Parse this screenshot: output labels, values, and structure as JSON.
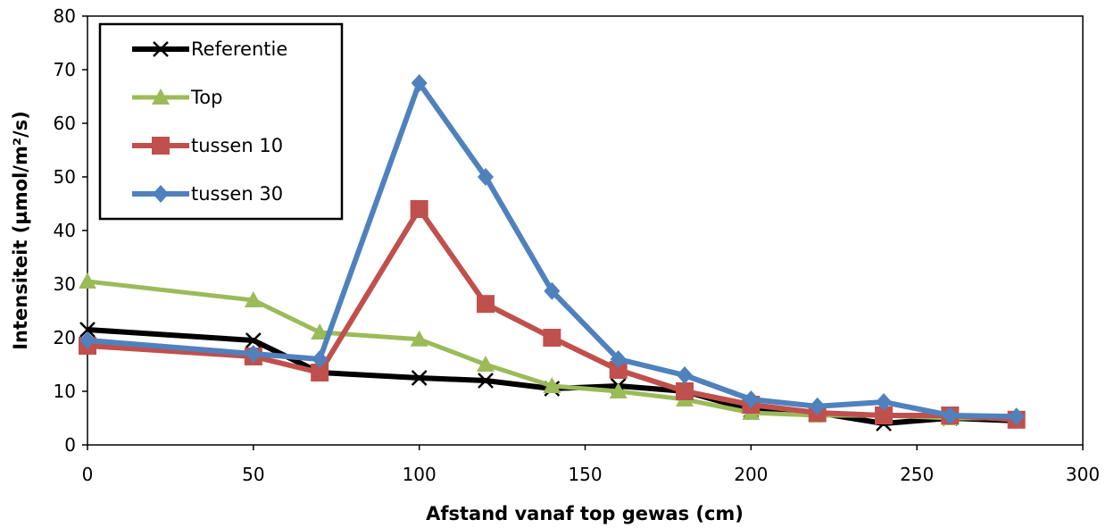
{
  "chart_data": {
    "type": "line",
    "title": "",
    "xlabel": "Afstand vanaf top gewas (cm)",
    "ylabel": "Intensiteit (µmol/m²/s)",
    "xlim": [
      0,
      300
    ],
    "ylim": [
      0,
      80
    ],
    "x_ticks": [
      "0",
      "50",
      "100",
      "150",
      "200",
      "250",
      "300"
    ],
    "y_ticks": [
      "0",
      "10",
      "20",
      "30",
      "40",
      "50",
      "60",
      "70",
      "80"
    ],
    "grid": false,
    "legend_position": "top-left",
    "series": [
      {
        "name": "Referentie",
        "color": "#000000",
        "marker": "x",
        "x": [
          0,
          50,
          70,
          100,
          120,
          140,
          160,
          180,
          200,
          220,
          240,
          260,
          280
        ],
        "y": [
          21.5,
          19.5,
          13.5,
          12.5,
          12,
          10.5,
          11,
          10,
          6.5,
          6,
          4,
          5,
          4.5
        ]
      },
      {
        "name": "Top",
        "color": "#9bbb59",
        "marker": "triangle",
        "x": [
          0,
          50,
          70,
          100,
          120,
          140,
          160,
          180,
          200,
          220,
          240,
          260,
          280
        ],
        "y": [
          30.5,
          27,
          21,
          19.7,
          15,
          11,
          10,
          8.5,
          6,
          5.5,
          5.5,
          5,
          5
        ]
      },
      {
        "name": "tussen 10",
        "color": "#c0504d",
        "marker": "square",
        "x": [
          0,
          50,
          70,
          100,
          120,
          140,
          160,
          180,
          200,
          220,
          240,
          260,
          280
        ],
        "y": [
          18.5,
          16.5,
          13.5,
          44,
          26.3,
          20,
          14,
          10,
          7.5,
          6,
          5.5,
          5.5,
          4.7
        ]
      },
      {
        "name": "tussen 30",
        "color": "#4f81bd",
        "marker": "diamond",
        "x": [
          0,
          50,
          70,
          100,
          120,
          140,
          160,
          180,
          200,
          220,
          240,
          260,
          280
        ],
        "y": [
          19.5,
          17,
          16,
          67.5,
          50,
          28.7,
          16,
          13,
          8.5,
          7.2,
          8,
          5.5,
          5.3
        ]
      }
    ]
  }
}
